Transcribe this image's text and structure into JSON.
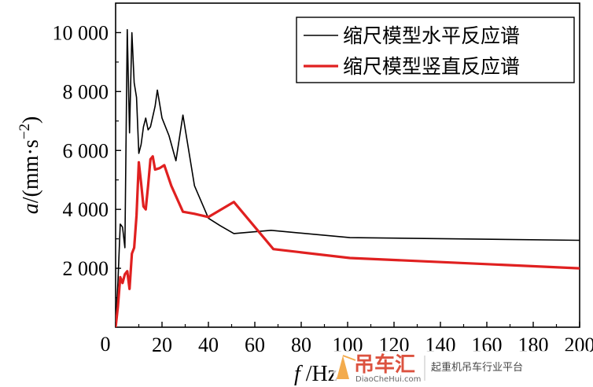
{
  "chart_data": {
    "type": "line",
    "xlabel_italic": "f",
    "xlabel_rest": " /Hz",
    "ylabel_italic": "a",
    "ylabel_rest": "/(mm·s",
    "ylabel_sup": "−2",
    "ylabel_close": ")",
    "xlim": [
      0,
      200
    ],
    "ylim": [
      0,
      11000
    ],
    "x_ticks": [
      0,
      20,
      40,
      60,
      80,
      100,
      120,
      140,
      160,
      180,
      200
    ],
    "y_ticks": [
      {
        "value": 2000,
        "label": "2 000"
      },
      {
        "value": 4000,
        "label": "4 000"
      },
      {
        "value": 6000,
        "label": "6 000"
      },
      {
        "value": 8000,
        "label": "8 000"
      },
      {
        "value": 10000,
        "label": "10 000"
      }
    ],
    "origin_label": "0",
    "legend_position": "top-right",
    "series": [
      {
        "name": "缩尺模型水平反应谱",
        "color": "#000000",
        "points": [
          [
            0,
            0
          ],
          [
            1,
            1500
          ],
          [
            2,
            3500
          ],
          [
            3,
            3400
          ],
          [
            4,
            2700
          ],
          [
            5,
            10100
          ],
          [
            6,
            6600
          ],
          [
            7,
            10000
          ],
          [
            8,
            8300
          ],
          [
            9,
            7800
          ],
          [
            10,
            5900
          ],
          [
            11,
            6200
          ],
          [
            12,
            6800
          ],
          [
            13,
            7100
          ],
          [
            14,
            6700
          ],
          [
            15,
            6800
          ],
          [
            17,
            7500
          ],
          [
            18,
            8050
          ],
          [
            20,
            7100
          ],
          [
            23,
            6500
          ],
          [
            26,
            5650
          ],
          [
            29,
            7200
          ],
          [
            34,
            4800
          ],
          [
            40,
            3700
          ],
          [
            45,
            3450
          ],
          [
            51,
            3180
          ],
          [
            67,
            3290
          ],
          [
            101,
            3040
          ],
          [
            200,
            2950
          ]
        ]
      },
      {
        "name": "缩尺模型竖直反应谱",
        "color": "#e02020",
        "points": [
          [
            0,
            0
          ],
          [
            1,
            700
          ],
          [
            2,
            1700
          ],
          [
            3,
            1500
          ],
          [
            4,
            1800
          ],
          [
            5,
            1900
          ],
          [
            6,
            1300
          ],
          [
            7,
            2500
          ],
          [
            8,
            2700
          ],
          [
            9,
            3800
          ],
          [
            10,
            5600
          ],
          [
            11,
            4900
          ],
          [
            12,
            4100
          ],
          [
            13,
            4000
          ],
          [
            14,
            4800
          ],
          [
            15,
            5700
          ],
          [
            16,
            5800
          ],
          [
            17,
            5350
          ],
          [
            19,
            5400
          ],
          [
            21,
            5500
          ],
          [
            24,
            4800
          ],
          [
            29,
            3920
          ],
          [
            34,
            3850
          ],
          [
            40,
            3740
          ],
          [
            51,
            4250
          ],
          [
            68,
            2650
          ],
          [
            101,
            2350
          ],
          [
            200,
            2000
          ]
        ]
      }
    ]
  },
  "watermark": {
    "brand": "吊车汇",
    "site": "DiaoCheHui.com",
    "slogan": "起重机吊车行业平台"
  }
}
